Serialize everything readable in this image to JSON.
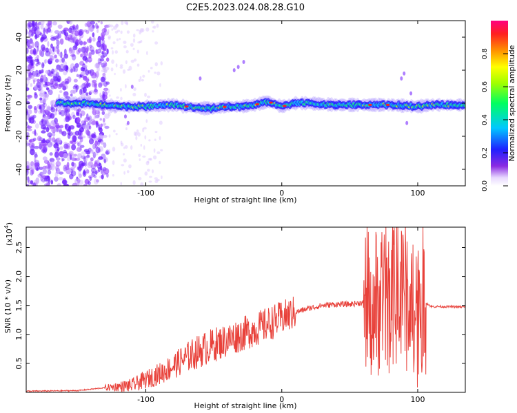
{
  "title": "C2E5.2023.024.08.28.G10",
  "chart_data": [
    {
      "type": "heatmap",
      "xlabel": "Height of straight line (km)",
      "ylabel": "Frequency (Hz)",
      "xlim": [
        -188,
        135
      ],
      "ylim": [
        -50,
        50
      ],
      "xticks": [
        -100,
        0,
        100
      ],
      "yticks": [
        -40,
        -20,
        0,
        20,
        40
      ],
      "colorbar": {
        "label": "Normalized spectral amplitude",
        "range": [
          0.0,
          1.0
        ],
        "ticks": [
          "0.0",
          "0.2",
          "0.4",
          "0.6",
          "0.8"
        ]
      },
      "ridge": {
        "description_values": {
          "x": [
            -160,
            -140,
            -120,
            -100,
            -80,
            -60,
            -50,
            -40,
            -30,
            -20,
            -10,
            0,
            10,
            20,
            40,
            60,
            80,
            100,
            110,
            135
          ],
          "frequency": [
            0,
            0,
            -2,
            -2,
            -1,
            -3,
            -3,
            -2,
            -2,
            -1,
            1,
            -2,
            0,
            0,
            -1,
            -1,
            -1,
            -2,
            -1,
            -1
          ]
        }
      }
    },
    {
      "type": "line",
      "xlabel": "Height of straight line (km)",
      "ylabel": "SNR (10 * v/v)",
      "yscale_label": "(x10",
      "yscale_exp": "4",
      "xlim": [
        -188,
        135
      ],
      "ylim": [
        0,
        2.85
      ],
      "xticks": [
        -100,
        0,
        100
      ],
      "yticks": [
        "0.5",
        "1.0",
        "1.5",
        "2.0",
        "2.5"
      ],
      "color": "#e8413a",
      "series": [
        {
          "x": [
            -188,
            -150,
            -130,
            -110,
            -100,
            -90,
            -80,
            -70,
            -60,
            -50,
            -40,
            -30,
            -20,
            -10,
            0,
            10,
            20,
            30,
            40,
            50,
            60,
            70,
            80,
            90,
            100,
            106,
            110,
            120,
            135
          ],
          "y": [
            0.02,
            0.03,
            0.08,
            0.12,
            0.22,
            0.32,
            0.45,
            0.6,
            0.72,
            0.82,
            0.9,
            1.0,
            1.08,
            1.18,
            1.28,
            1.38,
            1.45,
            1.5,
            1.52,
            1.52,
            1.55,
            1.55,
            1.6,
            1.62,
            1.6,
            1.55,
            1.48,
            1.48,
            1.47
          ]
        }
      ]
    }
  ]
}
